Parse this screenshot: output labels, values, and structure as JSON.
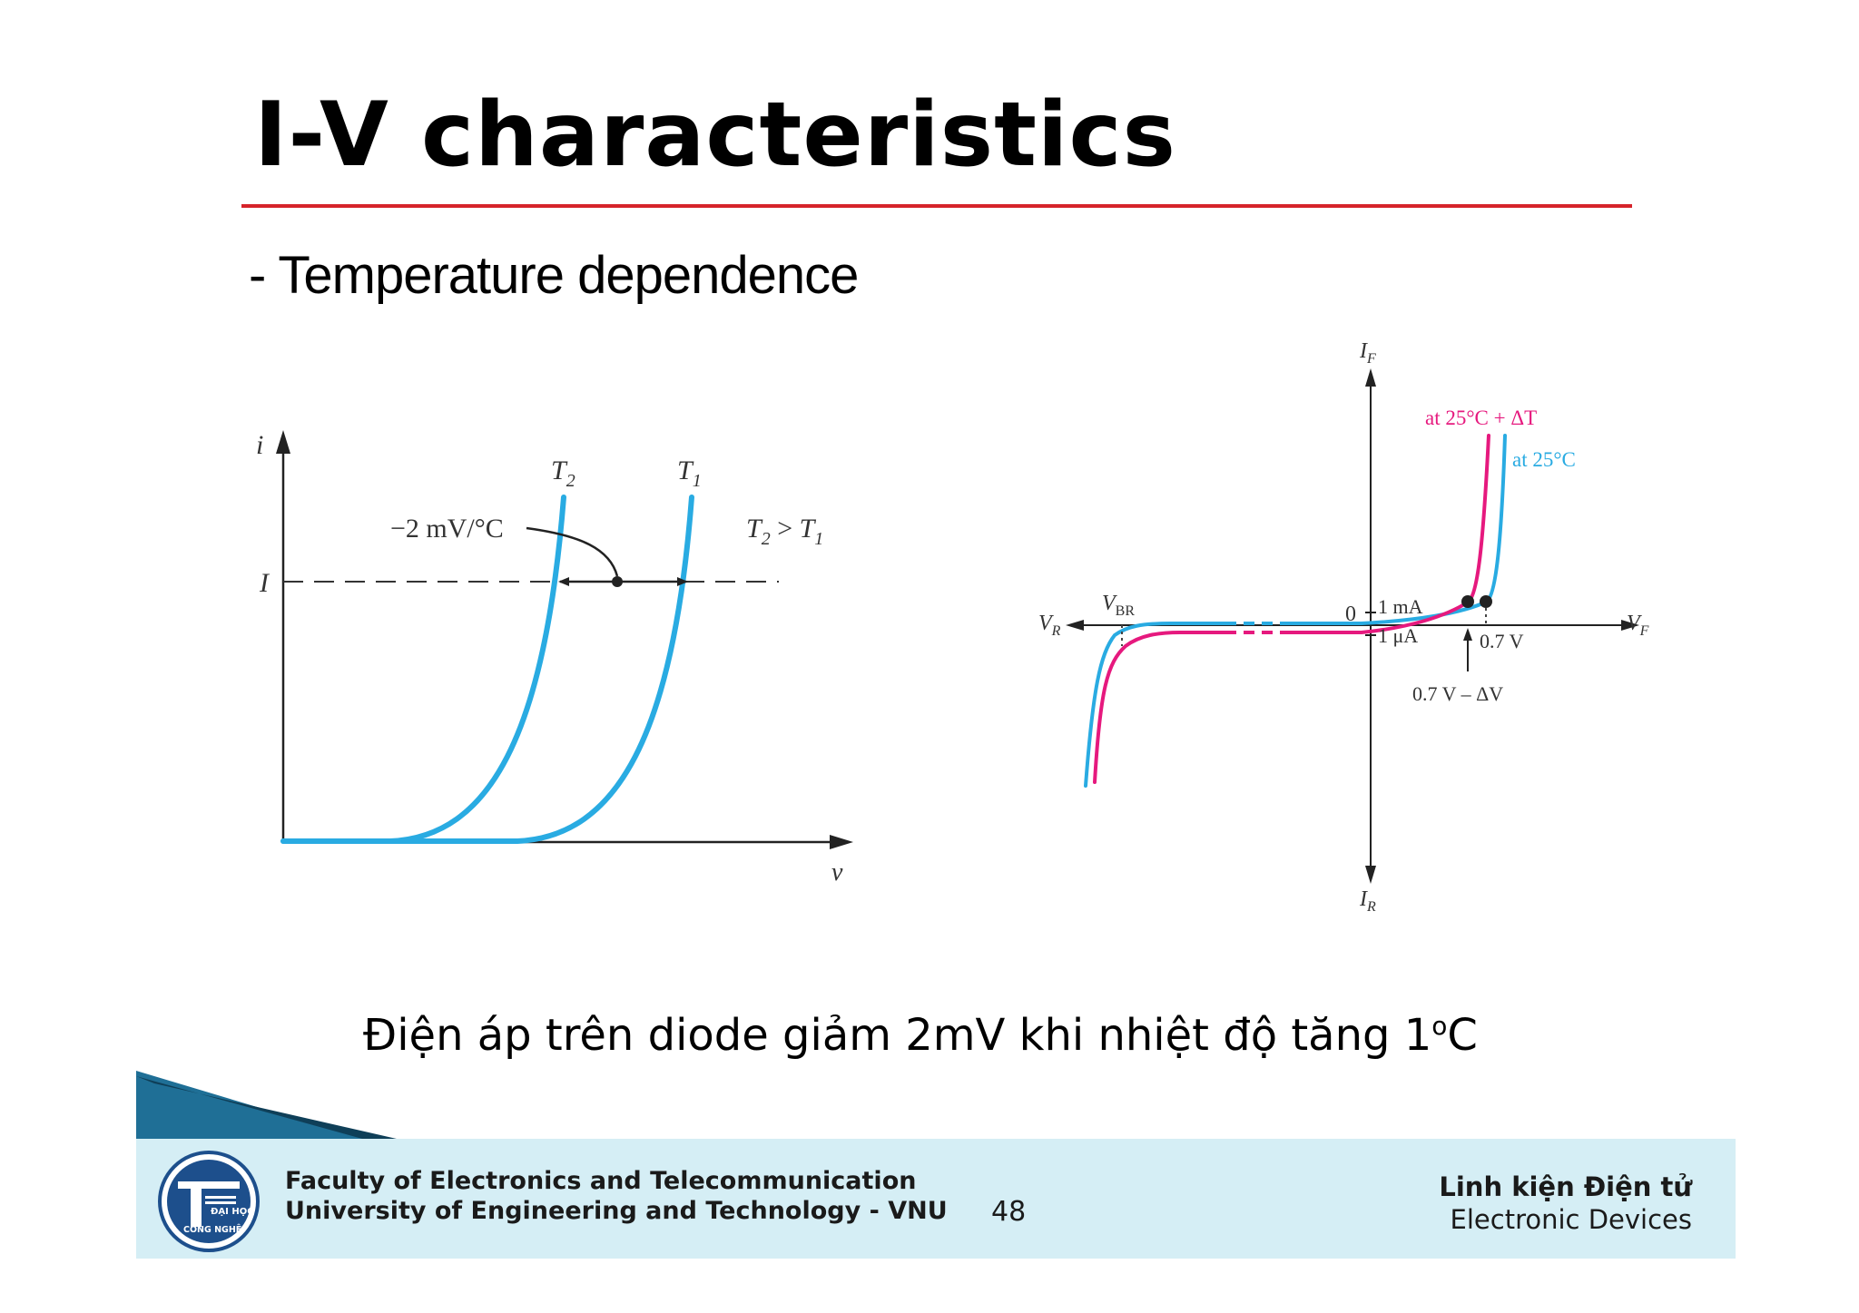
{
  "slide": {
    "title": "I-V characteristics",
    "subtitle": "- Temperature dependence",
    "caption_main": "Điện áp trên diode giảm 2mV khi nhiệt độ tăng 1",
    "caption_sup": "o",
    "caption_end": "C",
    "page_number": "48"
  },
  "left_figure": {
    "y_axis_label": "i",
    "x_axis_label": "v",
    "current_level_label": "I",
    "curve_t2_label": "T",
    "curve_t2_sub": "2",
    "curve_t1_label": "T",
    "curve_t1_sub": "1",
    "coefficient_label": "−2 mV/°C",
    "relation_a": "T",
    "relation_a_sub": "2",
    "relation_op": " > ",
    "relation_b": "T",
    "relation_b_sub": "1",
    "curve_color": "#29abe2"
  },
  "right_figure": {
    "if_label": "I",
    "if_sub": "F",
    "ir_label": "I",
    "ir_sub": "R",
    "vf_label": "V",
    "vf_sub": "F",
    "vr_label": "V",
    "vr_sub": "R",
    "vbr_label": "V",
    "vbr_sub": "BR",
    "origin_label": "0",
    "ma_label": "1 mA",
    "ua_label": "1 μA",
    "v07_label": "0.7 V",
    "v07_minus_label": "0.7 V – ΔV",
    "hot_label": "at 25°C + ΔT",
    "room_label": "at 25°C",
    "hot_color": "#e6197e",
    "room_color": "#29abe2"
  },
  "footer": {
    "faculty": "Faculty of Electronics and Telecommunication",
    "university": "University of Engineering and Technology - VNU",
    "course_vi": "Linh kiện Điện tử",
    "course_en": "Electronic Devices",
    "logo_line1": "ĐẠI HỌC",
    "logo_line2": "CÔNG NGHỆ",
    "band_color": "#d5eef5"
  }
}
